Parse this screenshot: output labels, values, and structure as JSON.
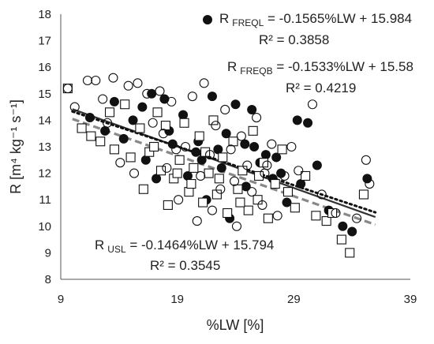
{
  "chart_data": {
    "type": "scatter",
    "xlabel": "%LW [%]",
    "ylabel": "R [m⁴ kg⁻¹ s⁻¹]",
    "xlim": [
      9,
      39
    ],
    "ylim": [
      8,
      18
    ],
    "xticks": [
      9,
      19,
      29,
      39
    ],
    "yticks": [
      8,
      9,
      10,
      11,
      12,
      13,
      14,
      15,
      16,
      17,
      18
    ],
    "grid": false,
    "series": [
      {
        "name": "R FREQL",
        "marker": "filled-circle",
        "color": "#111111",
        "trendline": {
          "slope": -0.1565,
          "intercept": 15.984,
          "style": "solid",
          "color": "#333333"
        },
        "points": [
          [
            11.5,
            14.1
          ],
          [
            12.8,
            13.6
          ],
          [
            13.6,
            14.7
          ],
          [
            15.2,
            14.0
          ],
          [
            16.0,
            14.5
          ],
          [
            16.8,
            15.0
          ],
          [
            17.9,
            14.8
          ],
          [
            18.6,
            13.1
          ],
          [
            19.5,
            14.2
          ],
          [
            20.8,
            13.2
          ],
          [
            22.0,
            14.9
          ],
          [
            22.5,
            12.9
          ],
          [
            23.2,
            13.5
          ],
          [
            24.0,
            14.6
          ],
          [
            24.8,
            13.1
          ],
          [
            25.4,
            14.4
          ],
          [
            26.1,
            12.4
          ],
          [
            26.6,
            12.7
          ],
          [
            27.2,
            11.8
          ],
          [
            27.9,
            12.0
          ],
          [
            28.4,
            10.9
          ],
          [
            29.3,
            14.0
          ],
          [
            30.2,
            13.9
          ],
          [
            31.0,
            12.3
          ],
          [
            32.0,
            10.6
          ],
          [
            33.2,
            10.0
          ],
          [
            34.0,
            9.8
          ],
          [
            35.3,
            11.8
          ],
          [
            19.9,
            11.9
          ],
          [
            21.5,
            11.0
          ],
          [
            23.5,
            10.3
          ],
          [
            24.9,
            11.5
          ],
          [
            20.6,
            12.8
          ],
          [
            18.3,
            13.6
          ],
          [
            16.3,
            12.5
          ],
          [
            22.8,
            12.2
          ],
          [
            25.6,
            13.0
          ],
          [
            27.5,
            12.6
          ],
          [
            29.6,
            11.6
          ],
          [
            14.4,
            13.3
          ],
          [
            17.2,
            11.8
          ],
          [
            21.1,
            12.5
          ]
        ]
      },
      {
        "name": "R FREQB",
        "marker": "open-square",
        "color": "#111111",
        "trendline": {
          "slope": -0.1533,
          "intercept": 15.58,
          "style": "dashed",
          "color": "#888888"
        },
        "points": [
          [
            9.6,
            15.2
          ],
          [
            10.8,
            13.7
          ],
          [
            11.6,
            13.4
          ],
          [
            12.4,
            13.2
          ],
          [
            13.2,
            14.3
          ],
          [
            13.6,
            12.9
          ],
          [
            14.5,
            14.6
          ],
          [
            15.0,
            12.6
          ],
          [
            15.8,
            13.7
          ],
          [
            16.1,
            11.4
          ],
          [
            16.6,
            12.8
          ],
          [
            17.3,
            14.3
          ],
          [
            17.6,
            12.1
          ],
          [
            18.0,
            13.8
          ],
          [
            18.2,
            10.8
          ],
          [
            18.7,
            11.8
          ],
          [
            19.2,
            12.5
          ],
          [
            19.6,
            13.9
          ],
          [
            20.0,
            11.3
          ],
          [
            20.4,
            12.2
          ],
          [
            20.9,
            13.4
          ],
          [
            21.2,
            10.9
          ],
          [
            21.7,
            12.0
          ],
          [
            22.1,
            14.0
          ],
          [
            22.4,
            11.2
          ],
          [
            22.9,
            12.6
          ],
          [
            23.3,
            10.5
          ],
          [
            23.8,
            13.2
          ],
          [
            24.2,
            11.4
          ],
          [
            24.6,
            12.1
          ],
          [
            25.1,
            10.6
          ],
          [
            25.5,
            13.6
          ],
          [
            25.9,
            11.0
          ],
          [
            26.4,
            12.4
          ],
          [
            26.8,
            10.3
          ],
          [
            27.4,
            11.6
          ],
          [
            28.0,
            12.9
          ],
          [
            28.5,
            11.3
          ],
          [
            29.1,
            10.7
          ],
          [
            30.0,
            11.9
          ],
          [
            30.9,
            10.4
          ],
          [
            31.8,
            10.2
          ],
          [
            32.3,
            10.5
          ],
          [
            33.1,
            9.5
          ],
          [
            33.8,
            9.0
          ],
          [
            35.0,
            11.2
          ],
          [
            17.0,
            13.0
          ],
          [
            20.2,
            11.6
          ],
          [
            22.6,
            11.8
          ],
          [
            24.4,
            10.9
          ],
          [
            19.0,
            12.0
          ],
          [
            21.4,
            12.8
          ],
          [
            26.0,
            11.9
          ]
        ]
      },
      {
        "name": "R USL",
        "marker": "open-circle",
        "color": "#111111",
        "trendline": {
          "slope": -0.1464,
          "intercept": 15.794,
          "style": "dotted",
          "color": "#111111"
        },
        "points": [
          [
            9.6,
            15.2
          ],
          [
            10.2,
            14.5
          ],
          [
            11.3,
            15.5
          ],
          [
            12.0,
            15.5
          ],
          [
            12.6,
            14.8
          ],
          [
            13.5,
            15.6
          ],
          [
            14.1,
            12.4
          ],
          [
            14.8,
            15.3
          ],
          [
            15.6,
            15.4
          ],
          [
            16.4,
            15.0
          ],
          [
            16.9,
            13.9
          ],
          [
            17.5,
            15.1
          ],
          [
            18.1,
            12.2
          ],
          [
            18.5,
            14.7
          ],
          [
            19.1,
            11.0
          ],
          [
            19.7,
            13.0
          ],
          [
            20.3,
            14.9
          ],
          [
            20.7,
            10.2
          ],
          [
            21.3,
            15.4
          ],
          [
            21.8,
            12.7
          ],
          [
            22.3,
            13.8
          ],
          [
            22.7,
            11.4
          ],
          [
            23.1,
            14.4
          ],
          [
            23.6,
            12.9
          ],
          [
            24.1,
            10.0
          ],
          [
            24.5,
            13.4
          ],
          [
            25.0,
            12.3
          ],
          [
            25.4,
            11.3
          ],
          [
            25.8,
            14.1
          ],
          [
            26.3,
            10.8
          ],
          [
            26.7,
            12.3
          ],
          [
            27.1,
            13.1
          ],
          [
            27.6,
            10.4
          ],
          [
            28.2,
            11.9
          ],
          [
            28.8,
            13.0
          ],
          [
            29.4,
            12.1
          ],
          [
            30.6,
            14.6
          ],
          [
            31.4,
            11.2
          ],
          [
            32.6,
            10.5
          ],
          [
            34.4,
            10.3
          ],
          [
            35.2,
            12.5
          ],
          [
            35.5,
            11.6
          ],
          [
            15.3,
            12.0
          ],
          [
            18.9,
            12.9
          ],
          [
            21.0,
            11.9
          ],
          [
            23.9,
            11.7
          ],
          [
            26.5,
            12.0
          ],
          [
            13.0,
            13.9
          ],
          [
            17.8,
            13.5
          ],
          [
            22.0,
            10.6
          ]
        ]
      }
    ],
    "annotations": [
      {
        "main": "R",
        "sub": "FREQL",
        "rest": " = -0.1565%LW + 15.984"
      },
      {
        "main": "R² = 0.3858"
      },
      {
        "main": "R",
        "sub": "FREQB",
        "rest": " = -0.1533%LW + 15.58"
      },
      {
        "main": "R² = 0.4219"
      },
      {
        "main": "R",
        "sub": "USL",
        "rest": " = -0.1464%LW + 15.794"
      },
      {
        "main": "R² = 0.3545"
      }
    ]
  }
}
